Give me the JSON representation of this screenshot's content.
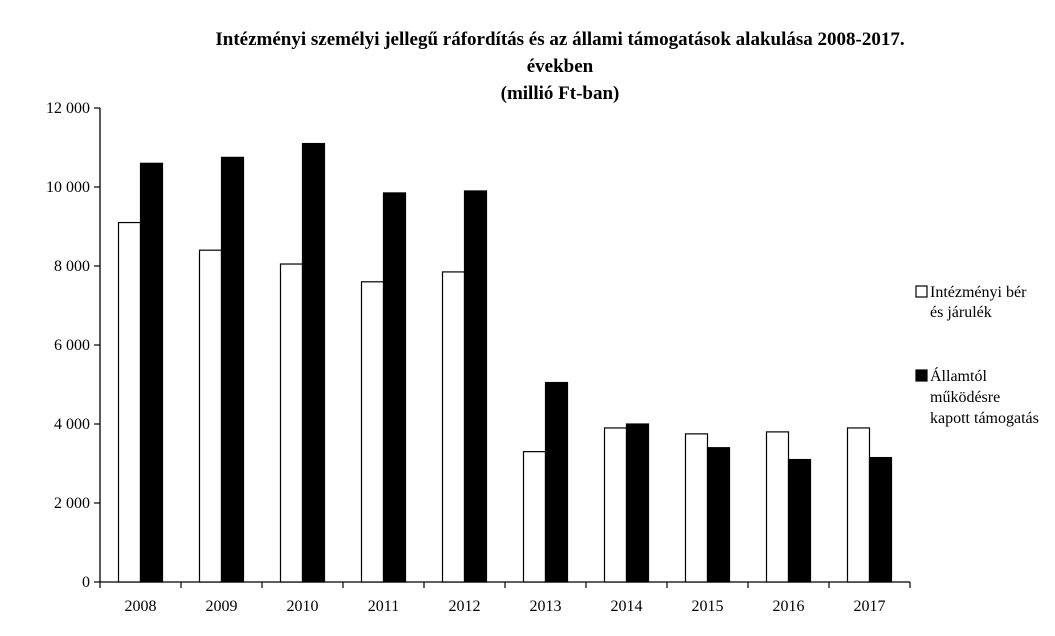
{
  "chart_data": {
    "type": "bar",
    "title_lines": [
      "Intézményi személyi jellegű ráfordítás és az állami támogatások alakulása 2008-2017.",
      "években",
      "(millió Ft-ban)"
    ],
    "xlabel": "",
    "ylabel": "",
    "ylim": [
      0,
      12000
    ],
    "y_ticks": [
      0,
      2000,
      4000,
      6000,
      8000,
      10000,
      12000
    ],
    "y_tick_labels": [
      "0",
      "2 000",
      "4 000",
      "6 000",
      "8 000",
      "10 000",
      "12 000"
    ],
    "categories": [
      "2008",
      "2009",
      "2010",
      "2011",
      "2012",
      "2013",
      "2014",
      "2015",
      "2016",
      "2017"
    ],
    "series": [
      {
        "name": "Intézményi bér és járulék",
        "legend_lines": [
          "Intézményi bér",
          "és járulék"
        ],
        "color": "#ffffff",
        "values": [
          9100,
          8400,
          8050,
          7600,
          7850,
          3300,
          3900,
          3750,
          3800,
          3900
        ]
      },
      {
        "name": "Államtól működésre kapott támogatás",
        "legend_lines": [
          "Államtól",
          "működésre",
          "kapott támogatás"
        ],
        "color": "#000000",
        "values": [
          10600,
          10750,
          11100,
          9850,
          9900,
          5050,
          4000,
          3400,
          3100,
          3150
        ]
      }
    ],
    "grid": false,
    "legend_position": "right"
  }
}
